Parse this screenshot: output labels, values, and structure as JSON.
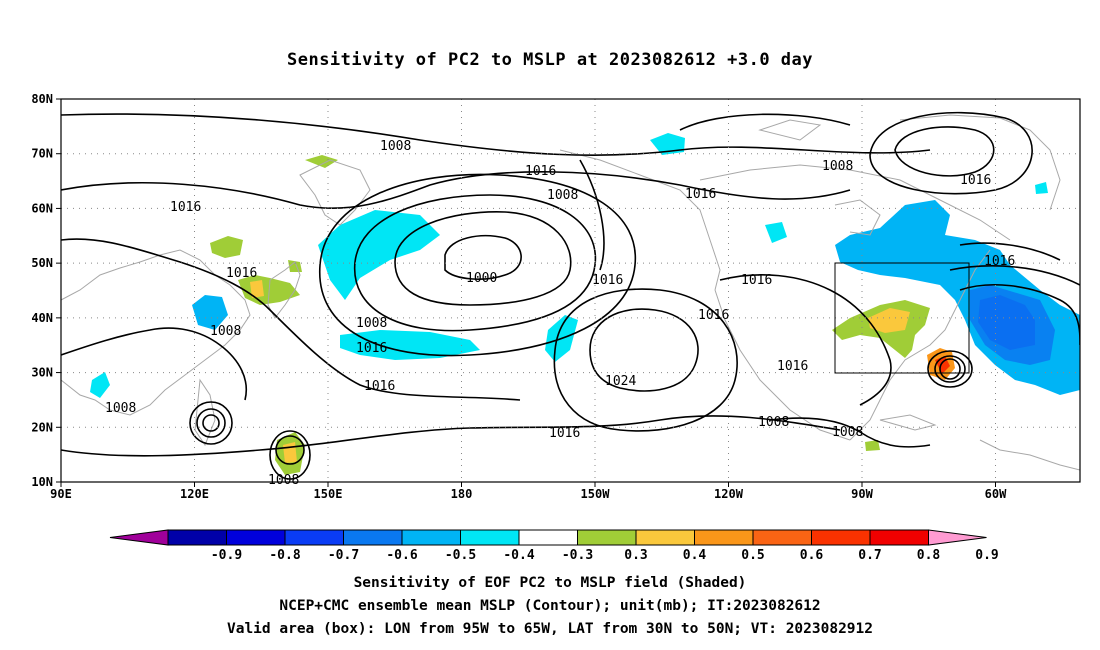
{
  "title": "Sensitivity of PC2 to MSLP at 2023082612 +3.0 day",
  "map": {
    "lat_labels": [
      "80N",
      "70N",
      "60N",
      "50N",
      "40N",
      "30N",
      "20N",
      "10N"
    ],
    "lon_labels": [
      "90E",
      "120E",
      "150E",
      "180",
      "150W",
      "120W",
      "90W",
      "60W"
    ],
    "contour_labels": [
      "1008",
      "1016",
      "1008",
      "1016",
      "1000",
      "1008",
      "1016",
      "1016",
      "1016",
      "1008",
      "1016",
      "1008",
      "1016",
      "1008",
      "1016",
      "1016",
      "1016",
      "1024",
      "1016",
      "1016",
      "1008",
      "1008",
      "1008",
      "1016"
    ],
    "valid_box": {
      "lon_from": "95W",
      "lon_to": "65W",
      "lat_from": "30N",
      "lat_to": "50N"
    }
  },
  "colorbar": {
    "labels": [
      "-0.9",
      "-0.8",
      "-0.7",
      "-0.6",
      "-0.5",
      "-0.4",
      "-0.3",
      "0.3",
      "0.4",
      "0.5",
      "0.6",
      "0.7",
      "0.8",
      "0.9"
    ],
    "colors": [
      "#a0009a",
      "#0000a8",
      "#0000dc",
      "#0a3cf5",
      "#0a78f0",
      "#00b4f5",
      "#00e6f5",
      "#ffffff",
      "#a0cd37",
      "#fac83c",
      "#fa9619",
      "#fa6414",
      "#fa3200",
      "#f00000",
      "#ff9bd2"
    ]
  },
  "captions": [
    "Sensitivity of EOF PC2 to MSLP field (Shaded)",
    "NCEP+CMC ensemble mean MSLP (Contour); unit(mb); IT:2023082612",
    "Valid area (box): LON from 95W to 65W, LAT from 30N to 50N; VT: 2023082912"
  ],
  "colors": {
    "coast": "#a8a8a8",
    "contour": "#000000",
    "grid": "#888888"
  }
}
